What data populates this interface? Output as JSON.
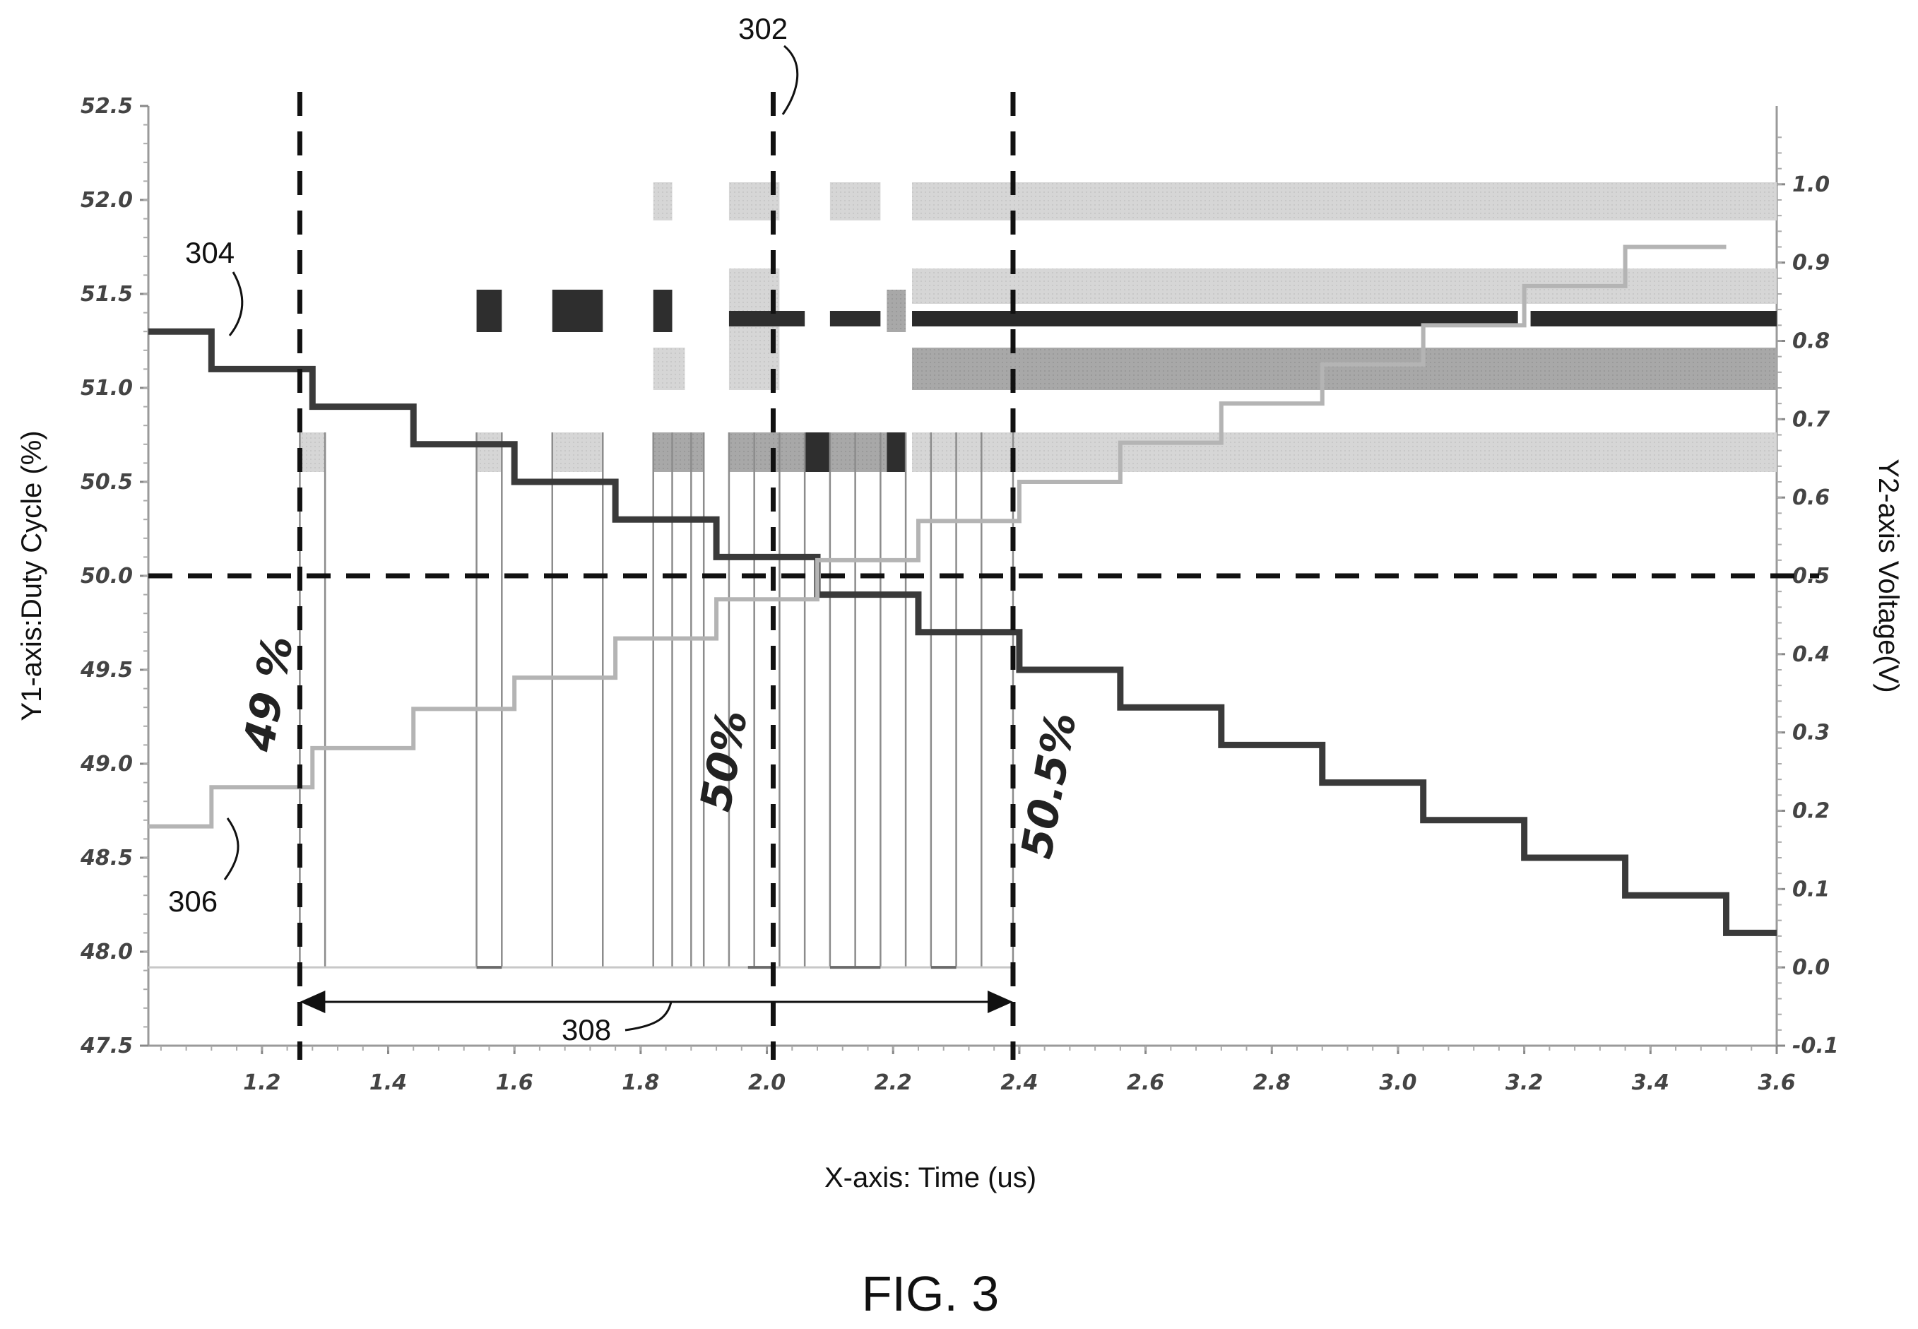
{
  "figure": {
    "caption": "FIG. 3",
    "reference_numerals": {
      "r302": "302",
      "r304": "304",
      "r306": "306",
      "r308": "308"
    },
    "annotations": {
      "a1": "49 %",
      "a2": "50%",
      "a3": "50.5%"
    }
  },
  "chart_data": {
    "type": "line",
    "xlabel": "X-axis: Time (us)",
    "ylabel_left": "Y1-axis:Duty Cycle (%)",
    "ylabel_right": "Y2-axis Voltage(V)",
    "xlim": [
      1.02,
      3.6
    ],
    "ylim_left": [
      47.5,
      52.5
    ],
    "ylim_right": [
      -0.1,
      1.1
    ],
    "x_ticks": [
      "1.2",
      "1.4",
      "1.6",
      "1.8",
      "2.0",
      "2.2",
      "2.4",
      "2.6",
      "2.8",
      "3.0",
      "3.2",
      "3.4",
      "3.6"
    ],
    "y_left_ticks": [
      "47.5",
      "48.0",
      "48.5",
      "49.0",
      "49.5",
      "50.0",
      "50.5",
      "51.0",
      "51.5",
      "52.0",
      "52.5"
    ],
    "y_right_ticks": [
      "-0.1",
      "0.0",
      "0.1",
      "0.2",
      "0.3",
      "0.4",
      "0.5",
      "0.6",
      "0.7",
      "0.8",
      "0.9",
      "1.0"
    ],
    "series": [
      {
        "axis": "left",
        "color": "#3a3a3a",
        "step": true,
        "x": [
          1.02,
          1.12,
          1.28,
          1.44,
          1.6,
          1.76,
          1.92,
          2.08,
          2.24,
          2.4,
          2.56,
          2.72,
          2.88,
          3.04,
          3.2,
          3.36,
          3.52,
          3.6
        ],
        "y": [
          51.3,
          51.1,
          50.9,
          50.7,
          50.5,
          50.3,
          50.1,
          49.9,
          49.7,
          49.5,
          49.3,
          49.1,
          48.9,
          48.7,
          48.5,
          48.3,
          48.1,
          48.1
        ]
      },
      {
        "axis": "right",
        "color": "#b4b4b4",
        "step": true,
        "x": [
          1.02,
          1.12,
          1.28,
          1.44,
          1.6,
          1.76,
          1.92,
          2.08,
          2.24,
          2.4,
          2.56,
          2.72,
          2.88,
          3.04,
          3.2,
          3.36,
          3.52
        ],
        "y": [
          0.18,
          0.23,
          0.28,
          0.33,
          0.37,
          0.42,
          0.47,
          0.52,
          0.57,
          0.62,
          0.67,
          0.72,
          0.77,
          0.82,
          0.87,
          0.92,
          0.92
        ]
      }
    ],
    "reference_lines": [
      {
        "orientation": "vertical",
        "x": 1.26,
        "style": "dashed"
      },
      {
        "orientation": "vertical",
        "x": 2.01,
        "style": "dashed"
      },
      {
        "orientation": "vertical",
        "x": 2.39,
        "style": "dashed"
      },
      {
        "orientation": "horizontal",
        "y_left": 50.0,
        "style": "dashed"
      }
    ],
    "interval_arrow": {
      "x_start": 1.26,
      "x_end": 2.39
    }
  }
}
